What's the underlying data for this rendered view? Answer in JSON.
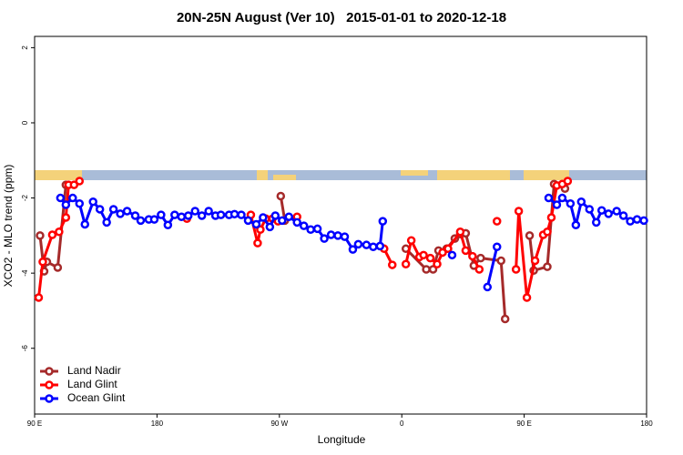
{
  "chart_data": {
    "type": "line",
    "title": "20N-25N August (Ver 10)   2015-01-01 to 2020-12-18",
    "xlabel": "Longitude",
    "ylabel": "XCO2 - MLO trend (ppm)",
    "xlim": [
      90,
      540
    ],
    "xticks": [
      {
        "value": 90,
        "label": "90 E"
      },
      {
        "value": 180,
        "label": "180"
      },
      {
        "value": 270,
        "label": "90 W"
      },
      {
        "value": 360,
        "label": "0"
      },
      {
        "value": 450,
        "label": "90 E"
      },
      {
        "value": 540,
        "label": "180"
      }
    ],
    "ylim": [
      -7.75,
      2.3
    ],
    "yticks": [
      2,
      0,
      -2,
      -4,
      -6
    ],
    "legend": "bottomleft",
    "series": [
      {
        "name": "Land Nadir",
        "color": "#a52a2a",
        "x": [
          94,
          97,
          99,
          107,
          113,
          null,
          271,
          274,
          null,
          363,
          378,
          383,
          387,
          393,
          399,
          403,
          407,
          413,
          418,
          433,
          436,
          null,
          454,
          457,
          467,
          472,
          480
        ],
        "values": [
          -3.0,
          -3.95,
          -3.7,
          -3.85,
          -1.65,
          null,
          -1.95,
          -2.6,
          null,
          -3.35,
          -3.9,
          -3.9,
          -3.4,
          -3.35,
          -3.08,
          -2.96,
          -2.94,
          -3.8,
          -3.6,
          -3.67,
          -5.22,
          null,
          -3.0,
          -3.93,
          -3.83,
          -1.63,
          -1.75
        ]
      },
      {
        "name": "Land Glint",
        "color": "#ff0000",
        "x": [
          93,
          96,
          103,
          108,
          113,
          115,
          119,
          123,
          null,
          202,
          null,
          249,
          254,
          256,
          260,
          265,
          269,
          283,
          null,
          347,
          353,
          null,
          363,
          367,
          373,
          376,
          381,
          386,
          390,
          394,
          403,
          407,
          412,
          417,
          null,
          430,
          null,
          444,
          446,
          452,
          458,
          464,
          467,
          470,
          474,
          478,
          482
        ],
        "values": [
          -4.65,
          -3.7,
          -2.98,
          -2.9,
          -2.52,
          -1.65,
          -1.65,
          -1.55,
          null,
          -2.55,
          null,
          -2.45,
          -3.2,
          -2.84,
          -2.55,
          -2.55,
          -2.62,
          -2.5,
          null,
          -3.35,
          -3.78,
          null,
          -3.76,
          -3.13,
          -3.57,
          -3.52,
          -3.6,
          -3.76,
          -3.45,
          -3.35,
          -2.9,
          -3.4,
          -3.55,
          -3.9,
          null,
          -2.62,
          null,
          -3.9,
          -2.35,
          -4.65,
          -3.67,
          -2.98,
          -2.9,
          -2.52,
          -1.67,
          -1.63,
          -1.55
        ]
      },
      {
        "name": "Ocean Glint",
        "color": "#0000ff",
        "x": [
          109,
          113,
          118,
          123,
          127,
          133,
          138,
          143,
          148,
          153,
          158,
          164,
          168,
          174,
          178,
          183,
          188,
          193,
          198,
          203,
          208,
          213,
          218,
          223,
          227,
          233,
          237,
          242,
          247,
          253,
          258,
          263,
          267,
          272,
          277,
          283,
          288,
          293,
          298,
          303,
          308,
          313,
          318,
          324,
          328,
          334,
          339,
          344,
          346,
          null,
          397,
          null,
          423,
          430,
          null,
          468,
          474,
          478,
          484,
          488,
          492,
          498,
          503,
          507,
          512,
          518,
          523,
          528,
          533,
          538
        ],
        "values": [
          -2.0,
          -2.18,
          -2.0,
          -2.15,
          -2.7,
          -2.1,
          -2.3,
          -2.65,
          -2.3,
          -2.42,
          -2.35,
          -2.47,
          -2.6,
          -2.57,
          -2.57,
          -2.45,
          -2.72,
          -2.45,
          -2.5,
          -2.47,
          -2.35,
          -2.47,
          -2.35,
          -2.47,
          -2.45,
          -2.45,
          -2.43,
          -2.45,
          -2.6,
          -2.7,
          -2.52,
          -2.77,
          -2.47,
          -2.6,
          -2.5,
          -2.65,
          -2.74,
          -2.84,
          -2.82,
          -3.08,
          -2.98,
          -3.0,
          -3.03,
          -3.37,
          -3.23,
          -3.25,
          -3.3,
          -3.28,
          -2.62,
          null,
          -3.52,
          null,
          -4.37,
          -3.3,
          null,
          -2.0,
          -2.18,
          -2.0,
          -2.15,
          -2.72,
          -2.1,
          -2.3,
          -2.65,
          -2.33,
          -2.42,
          -2.35,
          -2.47,
          -2.62,
          -2.57,
          -2.6
        ]
      }
    ]
  }
}
